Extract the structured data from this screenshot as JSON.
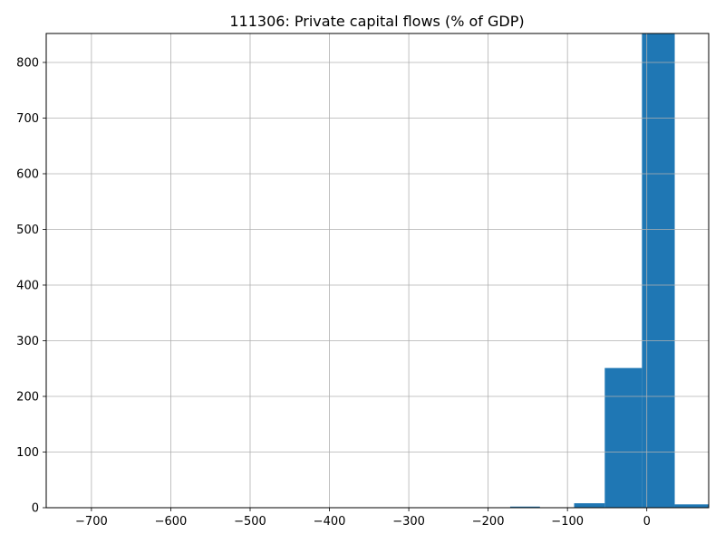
{
  "chart_data": {
    "type": "bar",
    "title": "111306: Private capital flows (% of GDP)",
    "xlabel": "",
    "ylabel": "",
    "xlim": [
      -757,
      78
    ],
    "ylim": [
      0,
      852
    ],
    "grid": true,
    "bar_color": "#1f77b4",
    "bin_edges": [
      -172.2,
      -134.7,
      -91.6,
      -53.0,
      -6.1,
      35.2,
      78.0
    ],
    "values": [
      2,
      0,
      8,
      251,
      852,
      6
    ],
    "x_ticks": [
      -700,
      -600,
      -500,
      -400,
      -300,
      -200,
      -100,
      0
    ],
    "x_tick_labels": [
      "−700",
      "−600",
      "−500",
      "−400",
      "−300",
      "−200",
      "−100",
      "0"
    ],
    "y_ticks": [
      0,
      100,
      200,
      300,
      400,
      500,
      600,
      700,
      800
    ],
    "y_tick_labels": [
      "0",
      "100",
      "200",
      "300",
      "400",
      "500",
      "600",
      "700",
      "800"
    ]
  }
}
